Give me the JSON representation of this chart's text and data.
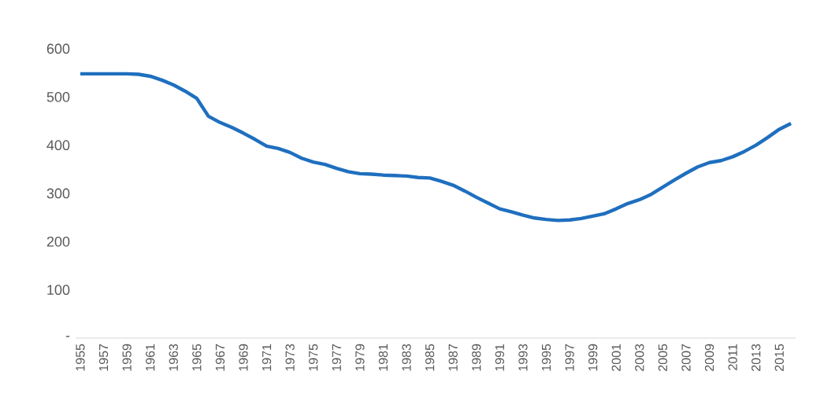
{
  "chart_data": {
    "type": "line",
    "x": [
      1955,
      1956,
      1957,
      1958,
      1959,
      1960,
      1961,
      1962,
      1963,
      1964,
      1965,
      1966,
      1967,
      1968,
      1969,
      1970,
      1971,
      1972,
      1973,
      1974,
      1975,
      1976,
      1977,
      1978,
      1979,
      1980,
      1981,
      1982,
      1983,
      1984,
      1985,
      1986,
      1987,
      1988,
      1989,
      1990,
      1991,
      1992,
      1993,
      1994,
      1995,
      1996,
      1997,
      1998,
      1999,
      2000,
      2001,
      2002,
      2003,
      2004,
      2005,
      2006,
      2007,
      2008,
      2009,
      2010,
      2011,
      2012,
      2013,
      2014,
      2015,
      2016
    ],
    "series": [
      {
        "color": "#1f6fbf",
        "values": [
          548,
          548,
          548,
          548,
          548,
          547,
          543,
          535,
          525,
          512,
          497,
          460,
          447,
          437,
          425,
          412,
          398,
          393,
          385,
          373,
          365,
          360,
          352,
          345,
          341,
          340,
          338,
          337,
          336,
          333,
          332,
          325,
          317,
          305,
          292,
          280,
          268,
          262,
          255,
          249,
          246,
          244,
          245,
          248,
          253,
          258,
          268,
          279,
          287,
          298,
          313,
          328,
          342,
          355,
          364,
          368,
          376,
          387,
          400,
          416,
          433,
          445
        ]
      }
    ],
    "xlim": [
      1954.6,
      2016.4
    ],
    "xticks": [
      1955,
      1957,
      1959,
      1961,
      1963,
      1965,
      1967,
      1969,
      1971,
      1973,
      1975,
      1977,
      1979,
      1981,
      1983,
      1985,
      1987,
      1989,
      1991,
      1993,
      1995,
      1997,
      1999,
      2001,
      2003,
      2005,
      2007,
      2009,
      2011,
      2013,
      2015
    ],
    "ylim": [
      0,
      600
    ],
    "yticks": [
      {
        "value": 0,
        "label": "-"
      },
      100,
      200,
      300,
      400,
      500,
      600
    ],
    "grid": false,
    "marker": "none",
    "line_style": "solid"
  }
}
